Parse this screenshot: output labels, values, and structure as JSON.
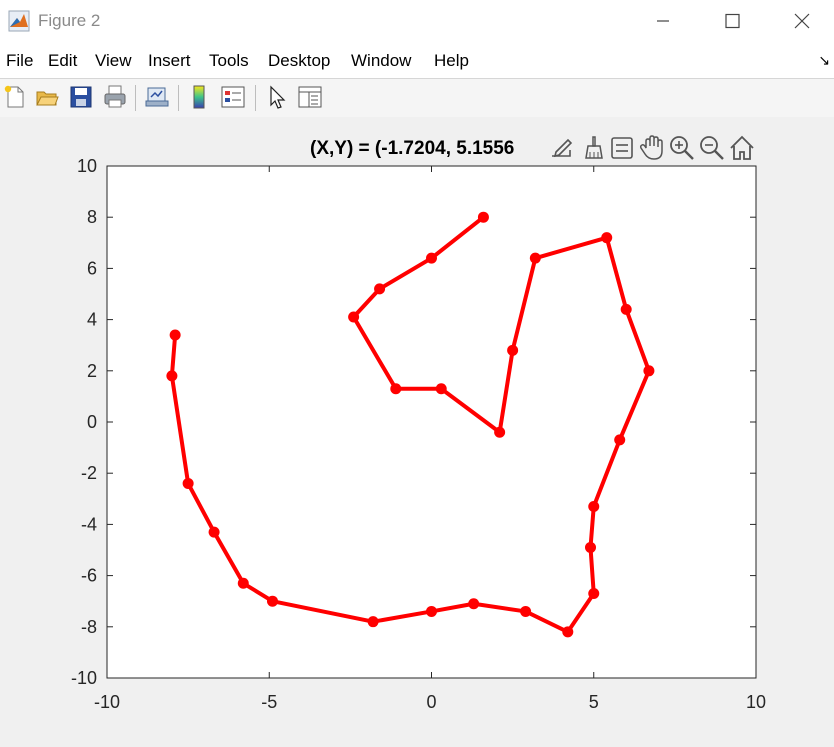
{
  "window": {
    "title": "Figure 2"
  },
  "menu": {
    "items": [
      "File",
      "Edit",
      "View",
      "Insert",
      "Tools",
      "Desktop",
      "Window",
      "Help"
    ],
    "overflow_arrow": "↘"
  },
  "toolbar": {
    "icons": [
      "new-figure-icon",
      "open-file-icon",
      "save-icon",
      "print-icon",
      "link-plot-icon",
      "insert-colorbar-icon",
      "insert-legend-icon",
      "edit-plot-arrow-icon",
      "property-inspector-icon"
    ]
  },
  "axes_toolbar": {
    "coordinate_readout": "(X,Y) = (-1.7204, 5.1556",
    "icons": [
      "export-icon",
      "brush-icon",
      "data-tips-icon",
      "pan-hand-icon",
      "zoom-in-icon",
      "zoom-out-icon",
      "home-restore-icon"
    ]
  },
  "chart_data": {
    "type": "line",
    "title": "",
    "xlabel": "",
    "ylabel": "",
    "xlim": [
      -10,
      10
    ],
    "ylim": [
      -10,
      10
    ],
    "x_ticks": [
      -10,
      -5,
      0,
      5,
      10
    ],
    "y_ticks": [
      -10,
      -8,
      -6,
      -4,
      -2,
      0,
      2,
      4,
      6,
      8,
      10
    ],
    "grid": false,
    "color": "#ff0000",
    "marker": "circle",
    "series": [
      {
        "x": [
          1.6,
          0.0,
          -1.6,
          -2.4,
          -1.1,
          0.3,
          2.1,
          2.5,
          3.2,
          5.4,
          6.0,
          6.7,
          5.8,
          5.0,
          4.9,
          5.0,
          4.2,
          2.9,
          1.3,
          0.0,
          -1.8,
          -4.9,
          -5.8,
          -6.7,
          -7.5,
          -8.0,
          -7.9
        ],
        "y": [
          8.0,
          6.4,
          5.2,
          4.1,
          1.3,
          1.3,
          -0.4,
          2.8,
          6.4,
          7.2,
          4.4,
          2.0,
          -0.7,
          -3.3,
          -4.9,
          -6.7,
          -8.2,
          -7.4,
          -7.1,
          -7.4,
          -7.8,
          -7.0,
          -6.3,
          -4.3,
          -2.4,
          1.8,
          3.4
        ]
      }
    ]
  }
}
